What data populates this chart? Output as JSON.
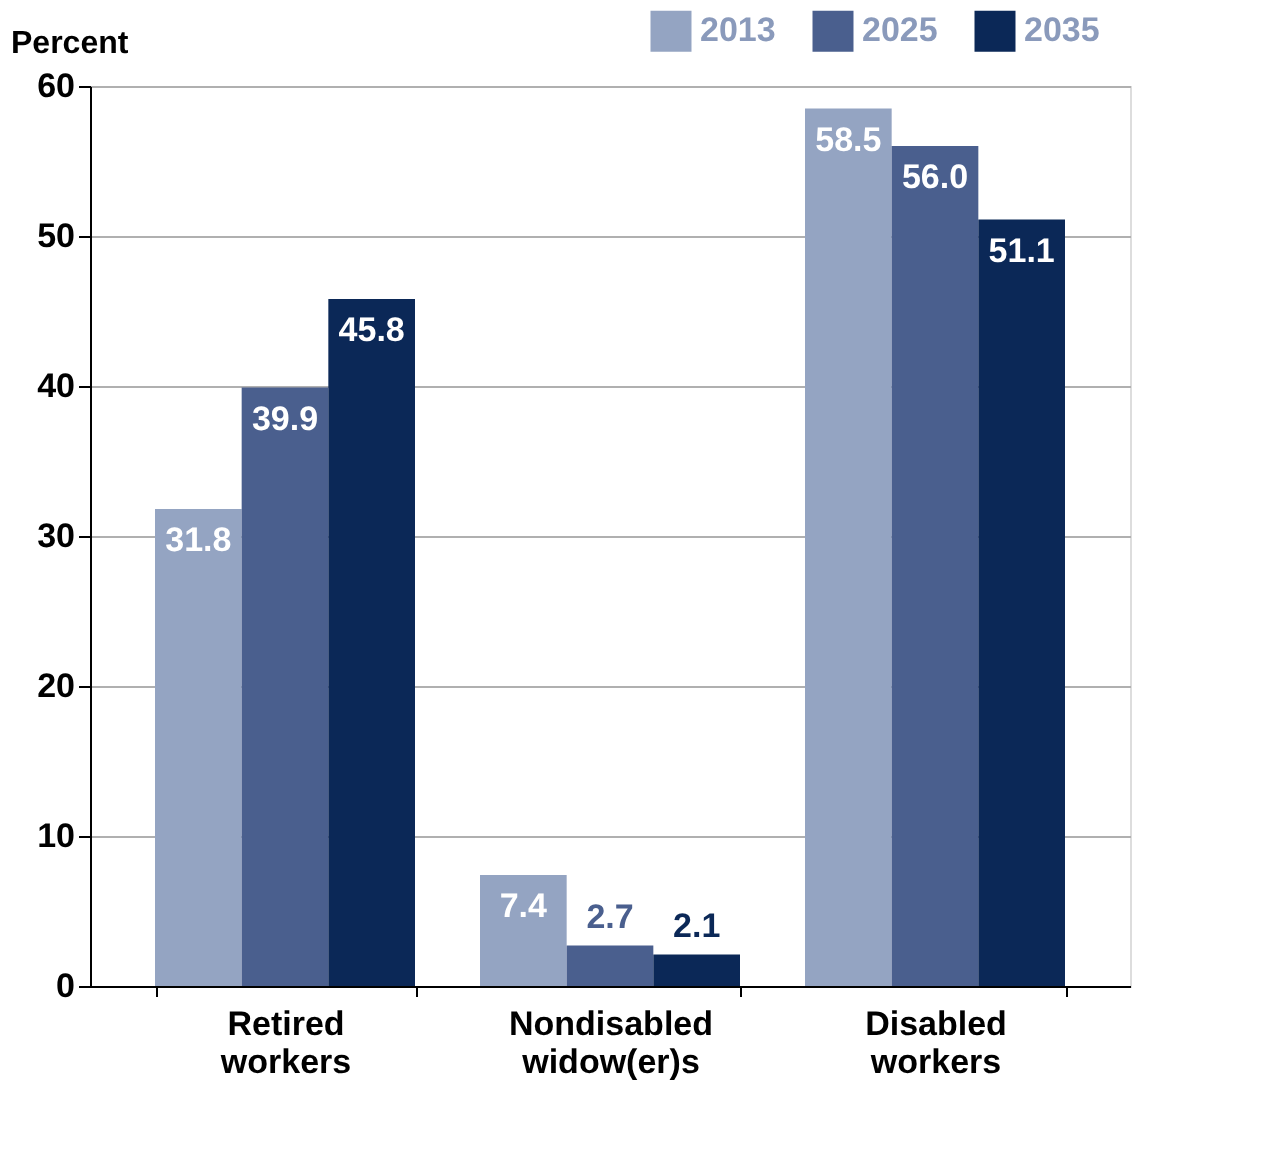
{
  "chart_data": {
    "type": "bar",
    "ylabel": "Percent",
    "categories": [
      "Retired workers",
      "Nondisabled widow(er)s",
      "Disabled workers"
    ],
    "series": [
      {
        "name": "2013",
        "color": "#94a4c2",
        "values": [
          31.8,
          7.4,
          58.5
        ],
        "value_labels": [
          "31.8",
          "7.4",
          "58.5"
        ]
      },
      {
        "name": "2025",
        "color": "#4a5f8e",
        "values": [
          39.9,
          2.7,
          56.0
        ],
        "value_labels": [
          "39.9",
          "2.7",
          "56.0"
        ]
      },
      {
        "name": "2035",
        "color": "#0b2857",
        "values": [
          45.8,
          2.1,
          51.1
        ],
        "value_labels": [
          "45.8",
          "2.1",
          "51.1"
        ]
      }
    ],
    "ylim": [
      0,
      60
    ],
    "yticks": [
      0,
      10,
      20,
      30,
      40,
      50,
      60
    ],
    "grid": "y",
    "legend": "top right"
  }
}
